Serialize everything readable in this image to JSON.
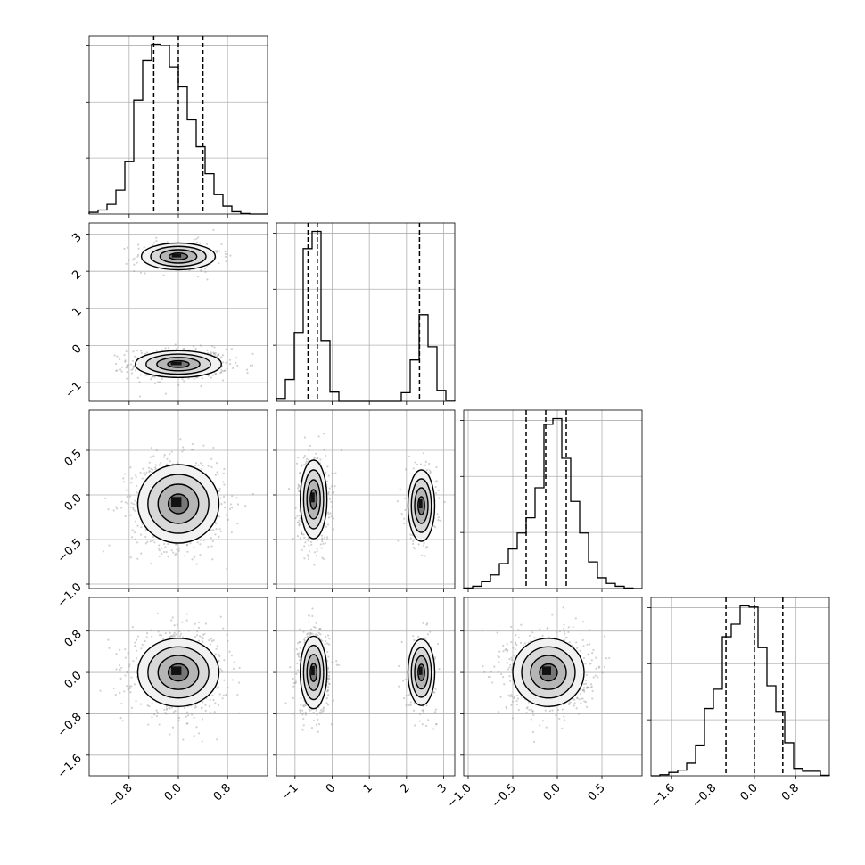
{
  "chart_data": {
    "type": "scatter",
    "title": "",
    "parameters": [
      {
        "index": 0,
        "ticks": [
          -0.8,
          0.0,
          0.8
        ],
        "tick_labels": [
          "−0.8",
          "0.0",
          "0.8"
        ],
        "range": [
          -1.45,
          1.45
        ]
      },
      {
        "index": 1,
        "ticks": [
          -1,
          0,
          1,
          2,
          3
        ],
        "tick_labels": [
          "−1",
          "0",
          "1",
          "2",
          "3"
        ],
        "range": [
          -1.5,
          3.3
        ]
      },
      {
        "index": 2,
        "ticks": [
          -1.0,
          -0.5,
          0.0,
          0.5
        ],
        "tick_labels": [
          "−1.0",
          "−0.5",
          "0.0",
          "0.5"
        ],
        "range": [
          -1.05,
          0.95
        ]
      },
      {
        "index": 3,
        "ticks": [
          -1.6,
          -0.8,
          0.0,
          0.8
        ],
        "tick_labels": [
          "−1.6",
          "−0.8",
          "0.0",
          "0.8"
        ],
        "range": [
          -2.0,
          1.45
        ]
      }
    ],
    "marginals": [
      {
        "param": 0,
        "quantiles": [
          -0.4,
          0.0,
          0.4
        ],
        "bins": [
          -1.45,
          -1.305,
          -1.16,
          -1.015,
          -0.87,
          -0.725,
          -0.58,
          -0.435,
          -0.29,
          -0.145,
          0.0,
          0.145,
          0.29,
          0.435,
          0.58,
          0.725,
          0.87,
          1.015,
          1.16,
          1.305,
          1.45
        ],
        "counts": [
          3,
          7,
          17,
          42,
          92,
          200,
          270,
          298,
          296,
          258,
          223,
          165,
          118,
          71,
          34,
          14,
          4,
          1,
          0,
          0
        ]
      },
      {
        "param": 1,
        "quantiles": [
          -0.65,
          -0.4,
          2.35
        ],
        "bins": [
          -1.5,
          -1.26,
          -1.02,
          -0.78,
          -0.54,
          -0.3,
          -0.06,
          0.18,
          0.42,
          0.66,
          0.9,
          1.14,
          1.38,
          1.62,
          1.86,
          2.1,
          2.34,
          2.58,
          2.82,
          3.06,
          3.3
        ],
        "counts": [
          5,
          38,
          120,
          266,
          296,
          106,
          16,
          0,
          0,
          0,
          0,
          0,
          0,
          0,
          15,
          72,
          151,
          95,
          19,
          2
        ]
      },
      {
        "param": 2,
        "quantiles": [
          -0.35,
          -0.13,
          0.1
        ],
        "bins": [
          -1.05,
          -0.95,
          -0.85,
          -0.75,
          -0.65,
          -0.55,
          -0.45,
          -0.35,
          -0.25,
          -0.15,
          -0.05,
          0.05,
          0.15,
          0.25,
          0.35,
          0.45,
          0.55,
          0.65,
          0.75,
          0.85,
          0.95
        ],
        "counts": [
          1,
          4,
          12,
          24,
          44,
          70,
          98,
          125,
          178,
          290,
          300,
          230,
          154,
          98,
          47,
          19,
          9,
          4,
          1,
          0
        ]
      },
      {
        "param": 3,
        "quantiles": [
          -0.55,
          0.0,
          0.55
        ],
        "bins": [
          -2.0,
          -1.8275,
          -1.655,
          -1.4825,
          -1.31,
          -1.1375,
          -0.965,
          -0.7925,
          -0.62,
          -0.4475,
          -0.275,
          -0.1025,
          0.07,
          0.2425,
          0.415,
          0.5875,
          0.76,
          0.9325,
          1.105,
          1.2775,
          1.45
        ],
        "counts": [
          0,
          2,
          6,
          10,
          22,
          54,
          118,
          152,
          244,
          266,
          298,
          296,
          225,
          158,
          113,
          58,
          13,
          8,
          8,
          1
        ]
      }
    ],
    "joint_components": [
      {
        "pair": [
          1,
          0
        ],
        "components": [
          {
            "mean_x": 0.0,
            "mean_y": -0.5,
            "sd_x": 0.35,
            "sd_y": 0.18,
            "weight": 0.72
          },
          {
            "mean_x": 0.0,
            "mean_y": 2.4,
            "sd_x": 0.3,
            "sd_y": 0.18,
            "weight": 0.28
          }
        ]
      },
      {
        "pair": [
          2,
          0
        ],
        "components": [
          {
            "mean_x": 0.0,
            "mean_y": -0.1,
            "sd_x": 0.33,
            "sd_y": 0.22,
            "weight": 1.0
          }
        ]
      },
      {
        "pair": [
          2,
          1
        ],
        "components": [
          {
            "mean_x": -0.5,
            "mean_y": -0.05,
            "sd_x": 0.18,
            "sd_y": 0.22,
            "weight": 0.72
          },
          {
            "mean_x": 2.4,
            "mean_y": -0.12,
            "sd_x": 0.18,
            "sd_y": 0.2,
            "weight": 0.28
          }
        ]
      },
      {
        "pair": [
          3,
          0
        ],
        "components": [
          {
            "mean_x": 0.0,
            "mean_y": 0.0,
            "sd_x": 0.33,
            "sd_y": 0.33,
            "weight": 1.0
          }
        ]
      },
      {
        "pair": [
          3,
          1
        ],
        "components": [
          {
            "mean_x": -0.5,
            "mean_y": 0.0,
            "sd_x": 0.18,
            "sd_y": 0.35,
            "weight": 0.72
          },
          {
            "mean_x": 2.4,
            "mean_y": 0.0,
            "sd_x": 0.18,
            "sd_y": 0.32,
            "weight": 0.28
          }
        ]
      },
      {
        "pair": [
          3,
          2
        ],
        "components": [
          {
            "mean_x": -0.1,
            "mean_y": 0.0,
            "sd_x": 0.2,
            "sd_y": 0.33,
            "weight": 1.0
          }
        ]
      }
    ],
    "contour_levels_sigma": [
      0.5,
      1.0,
      1.5,
      2.0
    ],
    "grid": true
  }
}
